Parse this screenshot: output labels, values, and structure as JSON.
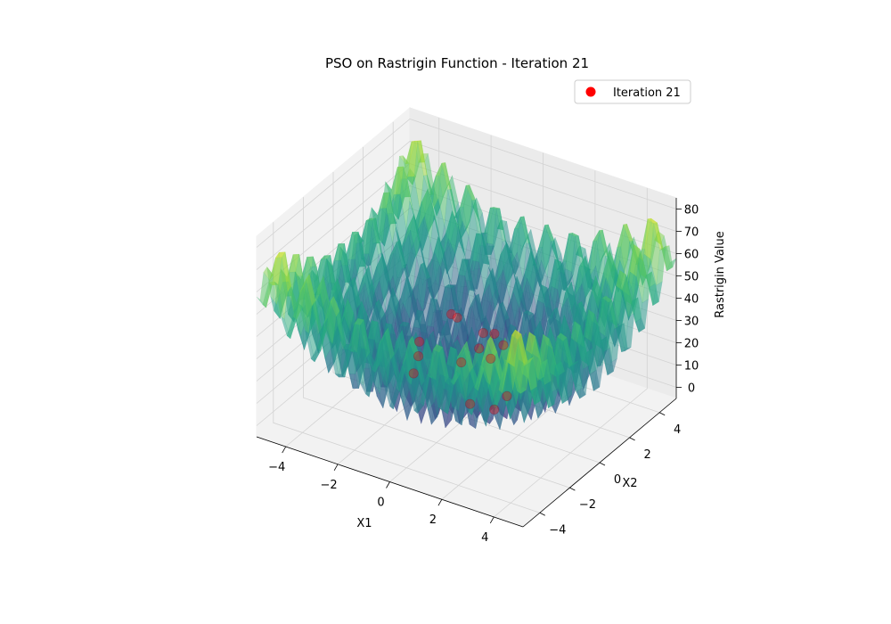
{
  "chart_data": {
    "type": "surface3d",
    "title": "PSO on Rastrigin Function - Iteration 21",
    "xlabel": "X1",
    "ylabel": "X2",
    "zlabel": "Rastrigin Value",
    "xlim": [
      -5.12,
      5.12
    ],
    "ylim": [
      -5.12,
      5.12
    ],
    "zlim": [
      -5,
      85
    ],
    "x_ticks": [
      -4,
      -2,
      0,
      2,
      4
    ],
    "y_ticks": [
      -4,
      -2,
      0,
      2,
      4
    ],
    "z_ticks": [
      0,
      10,
      20,
      30,
      40,
      50,
      60,
      70,
      80
    ],
    "x_tick_labels": [
      "−4",
      "−2",
      "0",
      "2",
      "4"
    ],
    "y_tick_labels": [
      "−4",
      "−2",
      "0",
      "2",
      "4"
    ],
    "z_tick_labels": [
      "0",
      "10",
      "20",
      "30",
      "40",
      "50",
      "60",
      "70",
      "80"
    ],
    "colormap": "viridis",
    "surface_alpha": 0.5,
    "legend": {
      "label": "Iteration 21",
      "marker_color": "#ff0000",
      "placement": "upper-right"
    },
    "particles": [
      {
        "x": -1.1,
        "y": 0.9,
        "z": 32
      },
      {
        "x": -0.9,
        "y": 0.95,
        "z": 31
      },
      {
        "x": 0.1,
        "y": 0.95,
        "z": 28
      },
      {
        "x": 0.5,
        "y": 1.0,
        "z": 29
      },
      {
        "x": 0.2,
        "y": 0.5,
        "z": 24
      },
      {
        "x": 0.7,
        "y": 0.4,
        "z": 22
      },
      {
        "x": -1.5,
        "y": -0.6,
        "z": 20
      },
      {
        "x": -2.1,
        "y": 0.5,
        "z": 18
      },
      {
        "x": -1.8,
        "y": -0.4,
        "z": 10
      },
      {
        "x": 0.6,
        "y": -0.8,
        "z": 8
      },
      {
        "x": 1.5,
        "y": 0.1,
        "z": 10
      },
      {
        "x": 1.3,
        "y": -0.4,
        "z": 6
      },
      {
        "x": -0.2,
        "y": 0.0,
        "z": 19
      },
      {
        "x": 0.9,
        "y": 0.9,
        "z": 26
      }
    ]
  }
}
